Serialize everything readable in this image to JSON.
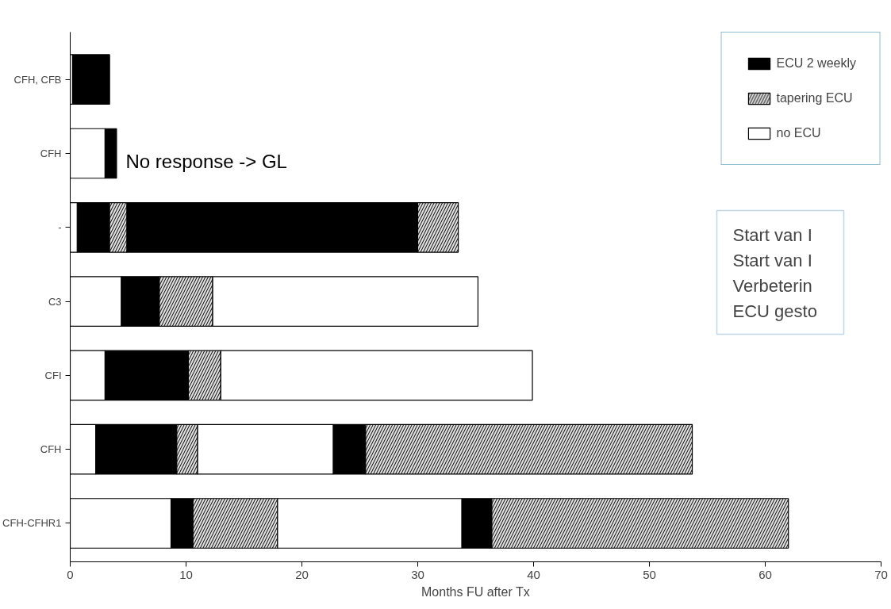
{
  "chart_data": {
    "type": "bar",
    "orientation": "horizontal",
    "xlabel": "Months FU after Tx",
    "categories": [
      "CFH, CFB",
      "CFH",
      "-",
      "C3",
      "CFI",
      "CFH",
      "CFH-CFHR1"
    ],
    "xlim": [
      0,
      70
    ],
    "xticks": [
      0,
      10,
      20,
      30,
      40,
      50,
      60,
      70
    ],
    "grid": false,
    "legend": "top right",
    "series": [
      {
        "name": "ECU 2 weekly",
        "color": "#000000",
        "base": [
          0.2,
          3.0,
          0.6,
          4.4,
          3.0,
          2.2,
          8.7
        ],
        "values": [
          3.2,
          1.0,
          2.8,
          3.3,
          7.2,
          7.0,
          1.9
        ]
      },
      {
        "name": "tapering ECU",
        "color": "#e0e0e0",
        "base": [
          null,
          null,
          3.4,
          7.7,
          10.2,
          9.2,
          10.6
        ],
        "values": [
          null,
          null,
          1.5,
          4.6,
          2.8,
          1.8,
          7.3
        ]
      },
      {
        "name": "no ECU",
        "color": "#ffffff",
        "base": [
          0,
          0,
          0,
          0,
          0,
          0,
          0
        ],
        "values": [
          0.2,
          3.0,
          0.6,
          4.4,
          3.0,
          2.2,
          8.7
        ]
      },
      {
        "color": "#000000",
        "base": [
          null,
          null,
          4.9,
          null,
          null,
          22.7,
          33.8
        ],
        "values": [
          null,
          null,
          25.1,
          null,
          null,
          2.8,
          2.6
        ]
      },
      {
        "color": "#e0e0e0",
        "base": [
          null,
          null,
          30.0,
          null,
          null,
          25.5,
          36.4
        ],
        "values": [
          null,
          null,
          3.5,
          null,
          null,
          28.2,
          25.6
        ]
      },
      {
        "color": "#ffffff",
        "base": [
          null,
          null,
          null,
          12.3,
          13.0,
          11.0,
          17.9
        ],
        "values": [
          null,
          null,
          null,
          22.9,
          26.9,
          11.7,
          15.9
        ]
      }
    ],
    "annotations": [
      "No response -> GL",
      "Start van I",
      "Start van I",
      "Verbeterin",
      "ECU gesto"
    ]
  }
}
